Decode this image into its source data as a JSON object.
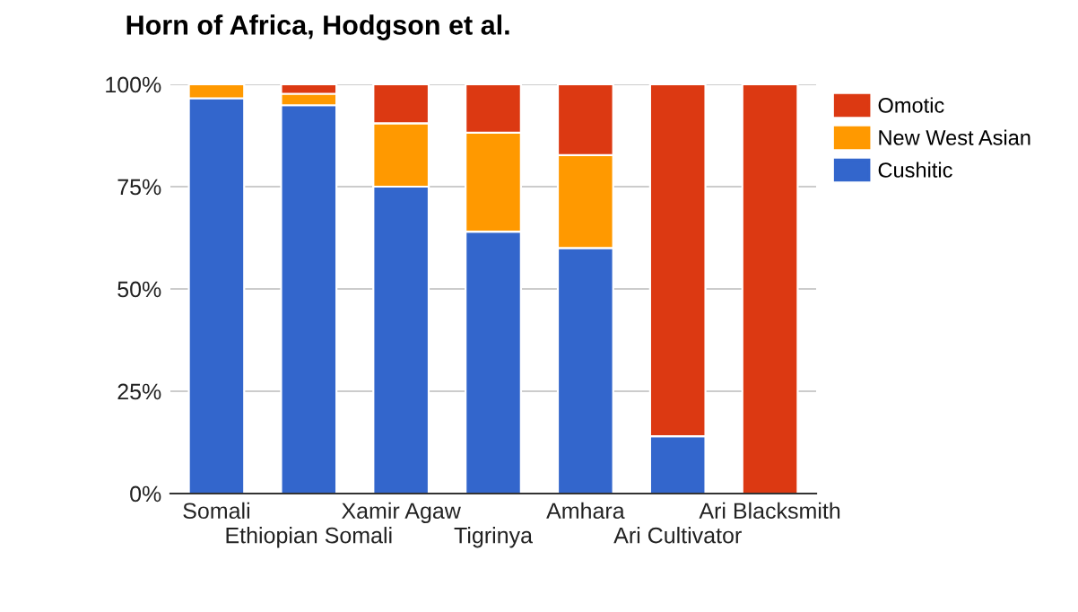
{
  "chart_data": {
    "type": "bar",
    "title": "Horn of Africa, Hodgson et al.",
    "stacked": true,
    "categories": [
      "Somali",
      "Ethiopian Somali",
      "Xamir Agaw",
      "Tigrinya",
      "Amhara",
      "Ari Cultivator",
      "Ari Blacksmith"
    ],
    "series": [
      {
        "name": "Cushitic",
        "color": "#3366cc",
        "values": [
          96.6,
          94.9,
          75,
          64,
          60,
          14,
          0
        ]
      },
      {
        "name": "New West Asian",
        "color": "#ff9900",
        "values": [
          3.4,
          2.8,
          15.5,
          24.2,
          22.7,
          0,
          0
        ]
      },
      {
        "name": "Omotic",
        "color": "#dc3912",
        "values": [
          0,
          2.3,
          9.5,
          11.8,
          17.3,
          86,
          100
        ]
      }
    ],
    "ylim": [
      0,
      100
    ],
    "yticks": [
      {
        "value": 0,
        "label": "0%"
      },
      {
        "value": 25,
        "label": "25%"
      },
      {
        "value": 50,
        "label": "50%"
      },
      {
        "value": 75,
        "label": "75%"
      },
      {
        "value": 100,
        "label": "100%"
      }
    ],
    "grid": "y",
    "legend": "right"
  }
}
